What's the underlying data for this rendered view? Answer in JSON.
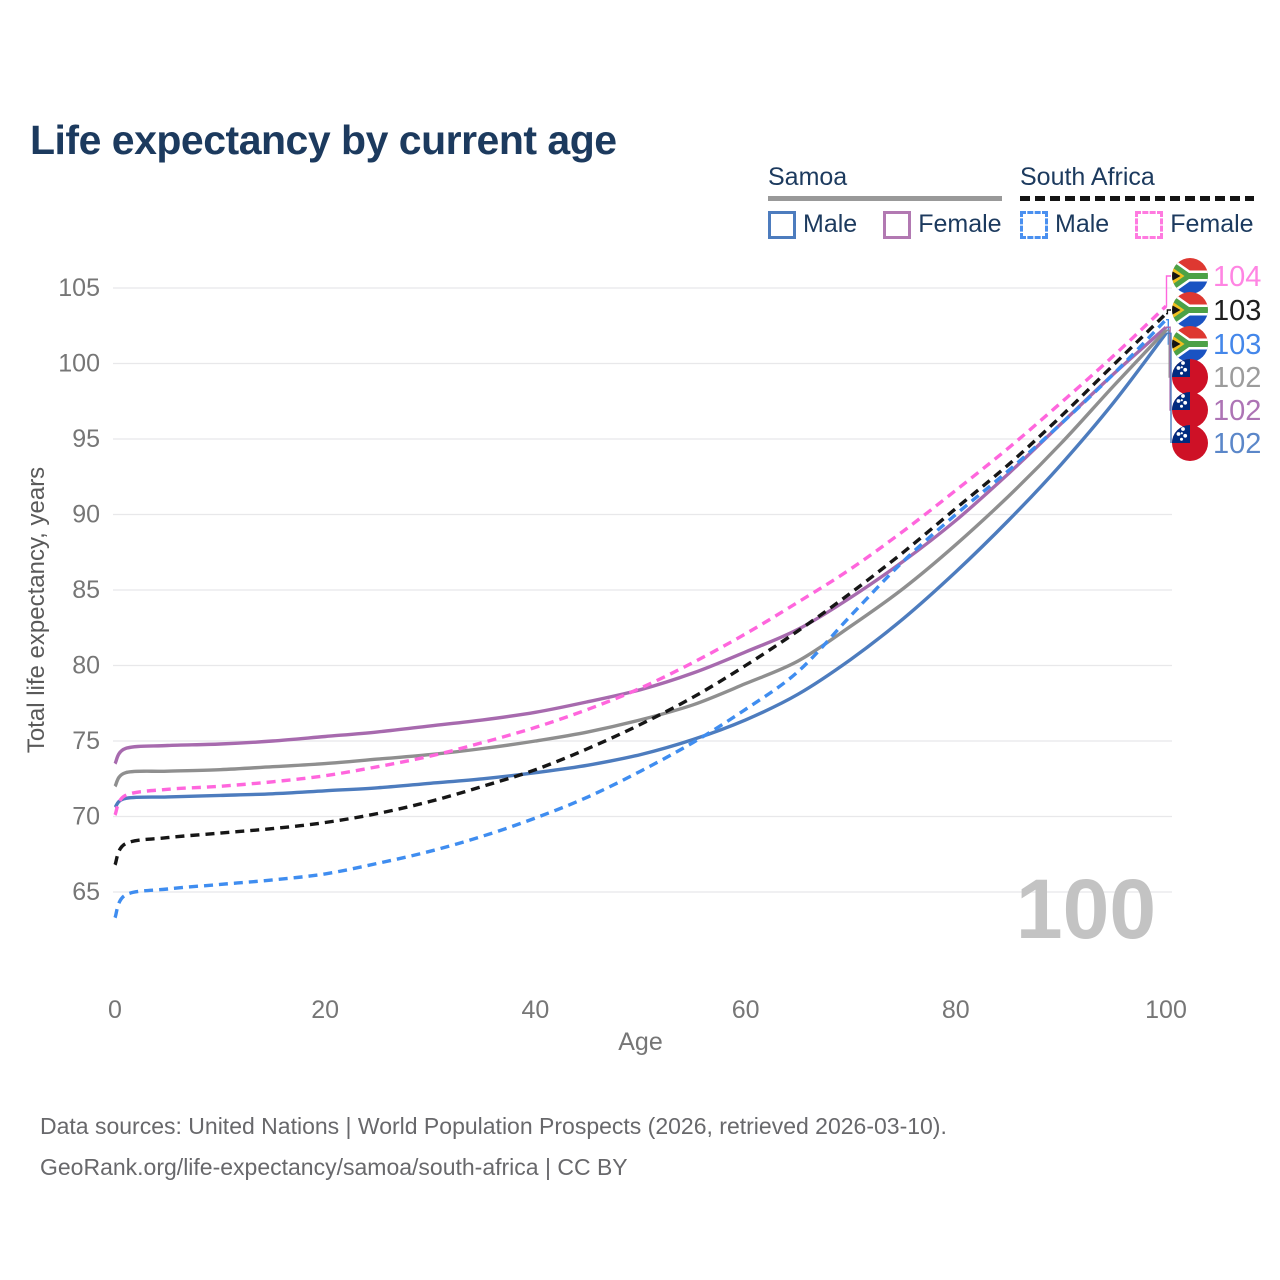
{
  "title": "Life expectancy by current age",
  "legend": {
    "groups": [
      {
        "id": "samoa",
        "label": "Samoa",
        "line_style": "solid",
        "line_color": "#999999",
        "items": [
          {
            "label": "Male",
            "box_color": "#4d7cbe",
            "box_style": "solid"
          },
          {
            "label": "Female",
            "box_color": "#b279b2",
            "box_style": "solid"
          }
        ]
      },
      {
        "id": "south-africa",
        "label": "South Africa",
        "line_style": "dashed",
        "line_color": "#141414",
        "items": [
          {
            "label": "Male",
            "box_color": "#4a90f0",
            "box_style": "dashed"
          },
          {
            "label": "Female",
            "box_color": "#ff7ae0",
            "box_style": "dashed"
          }
        ]
      }
    ]
  },
  "chart_data": {
    "type": "line",
    "title": "Life expectancy by current age",
    "xlabel": "Age",
    "ylabel": "Total life expectancy, years",
    "x_ticks": [
      0,
      20,
      40,
      60,
      80,
      100
    ],
    "y_ticks": [
      65,
      70,
      75,
      80,
      85,
      90,
      95,
      100,
      105
    ],
    "xlim": [
      0,
      100
    ],
    "ylim": [
      63,
      105.5
    ],
    "grid": "horizontal-only",
    "legend_position": "top-right",
    "watermark": "100",
    "x": [
      0,
      1,
      5,
      10,
      15,
      20,
      25,
      30,
      35,
      40,
      45,
      50,
      55,
      60,
      65,
      70,
      75,
      80,
      85,
      90,
      95,
      100
    ],
    "series": [
      {
        "id": "samoa-male",
        "name": "Samoa Male",
        "country": "Samoa",
        "sex": "Male",
        "style": "solid",
        "color": "#4d7cbe",
        "label_color": "#5b87c9",
        "end_label": "102",
        "flag": "samoa",
        "values": [
          70.6,
          71.2,
          71.3,
          71.4,
          71.5,
          71.7,
          71.9,
          72.2,
          72.5,
          72.9,
          73.4,
          74.1,
          75.1,
          76.4,
          78.1,
          80.4,
          83.1,
          86.2,
          89.6,
          93.3,
          97.4,
          102.0
        ]
      },
      {
        "id": "samoa-female",
        "name": "Samoa Female",
        "country": "Samoa",
        "sex": "Female",
        "style": "solid",
        "color": "#a76aae",
        "label_color": "#ad74b5",
        "end_label": "102",
        "flag": "samoa",
        "values": [
          73.5,
          74.5,
          74.7,
          74.8,
          75.0,
          75.3,
          75.6,
          76.0,
          76.4,
          76.9,
          77.6,
          78.4,
          79.5,
          80.9,
          82.4,
          84.5,
          86.9,
          89.6,
          92.7,
          96.0,
          99.3,
          102.4
        ]
      },
      {
        "id": "samoa-both",
        "name": "Samoa (both sexes)",
        "country": "Samoa",
        "sex": "Both",
        "style": "solid",
        "color": "#8f8f8f",
        "label_color": "#9c9c9c",
        "end_label": "102",
        "flag": "samoa",
        "values": [
          72.0,
          72.9,
          73.0,
          73.1,
          73.3,
          73.5,
          73.8,
          74.1,
          74.5,
          75.0,
          75.6,
          76.4,
          77.4,
          78.8,
          80.3,
          82.6,
          85.1,
          88.0,
          91.2,
          94.7,
          98.5,
          102.2
        ]
      },
      {
        "id": "sa-male",
        "name": "South Africa Male",
        "country": "South Africa",
        "sex": "Male",
        "style": "dashed",
        "color": "#3f8df0",
        "label_color": "#4487ea",
        "end_label": "103",
        "flag": "south-africa",
        "values": [
          63.3,
          64.8,
          65.2,
          65.5,
          65.8,
          66.2,
          66.9,
          67.7,
          68.7,
          69.9,
          71.3,
          73.0,
          74.9,
          77.1,
          79.6,
          83.3,
          86.9,
          90.0,
          92.9,
          96.0,
          99.3,
          102.9
        ]
      },
      {
        "id": "sa-female",
        "name": "South Africa Female",
        "country": "South Africa",
        "sex": "Female",
        "style": "dashed",
        "color": "#ff66dd",
        "label_color": "#ff85e3",
        "end_label": "104",
        "flag": "south-africa",
        "values": [
          70.1,
          71.4,
          71.8,
          72.0,
          72.3,
          72.7,
          73.3,
          74.0,
          74.9,
          75.9,
          77.1,
          78.5,
          80.2,
          82.1,
          84.2,
          86.4,
          88.9,
          91.6,
          94.4,
          97.4,
          100.5,
          103.8
        ]
      },
      {
        "id": "sa-both",
        "name": "South Africa (both sexes)",
        "country": "South Africa",
        "sex": "Both",
        "style": "dashed",
        "color": "#161616",
        "label_color": "#1f1f1f",
        "end_label": "103",
        "flag": "south-africa",
        "values": [
          66.8,
          68.2,
          68.6,
          68.9,
          69.2,
          69.6,
          70.2,
          71.0,
          72.0,
          73.1,
          74.5,
          76.1,
          77.9,
          80.0,
          82.3,
          84.8,
          87.5,
          90.4,
          93.3,
          96.5,
          99.9,
          103.3
        ]
      }
    ],
    "end_label_order": [
      "sa-female",
      "sa-both",
      "sa-male",
      "samoa-both",
      "samoa-female",
      "samoa-male"
    ]
  },
  "footer": {
    "line1": "Data sources: United Nations | World Population Prospects (2026, retrieved 2026-03-10).",
    "line2": "GeoRank.org/life-expectancy/samoa/south-africa | CC BY"
  }
}
